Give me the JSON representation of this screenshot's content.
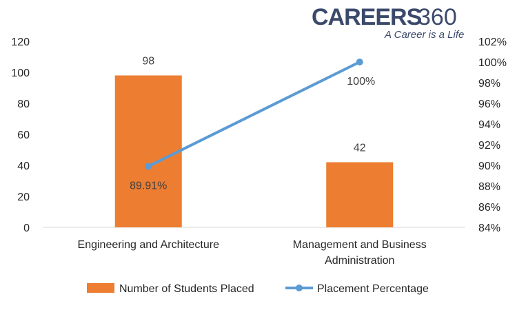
{
  "brand": {
    "name": "CAREERS",
    "number": "360",
    "tagline": "A Career is a Life",
    "color": "#3b4a6b"
  },
  "chart_data": {
    "type": "bar",
    "categories": [
      [
        "Engineering and Architecture"
      ],
      [
        "Management and Business",
        "Administration"
      ]
    ],
    "series": [
      {
        "name": "Number of Students Placed",
        "type": "bar",
        "axis": "left",
        "values": [
          98,
          42
        ],
        "labels": [
          "98",
          "42"
        ],
        "color": "#ed7d31"
      },
      {
        "name": "Placement Percentage",
        "type": "line",
        "axis": "right",
        "values": [
          89.91,
          100
        ],
        "labels": [
          "89.91%",
          "100%"
        ],
        "color": "#5b9bd5"
      }
    ],
    "y_left": {
      "min": 0,
      "max": 120,
      "step": 20,
      "ticks": [
        "0",
        "20",
        "40",
        "60",
        "80",
        "100",
        "120"
      ]
    },
    "y_right": {
      "min": 84,
      "max": 102,
      "step": 2,
      "ticks": [
        "84%",
        "86%",
        "88%",
        "90%",
        "92%",
        "94%",
        "96%",
        "98%",
        "100%",
        "102%"
      ]
    },
    "grid": false,
    "legend": "bottom"
  }
}
